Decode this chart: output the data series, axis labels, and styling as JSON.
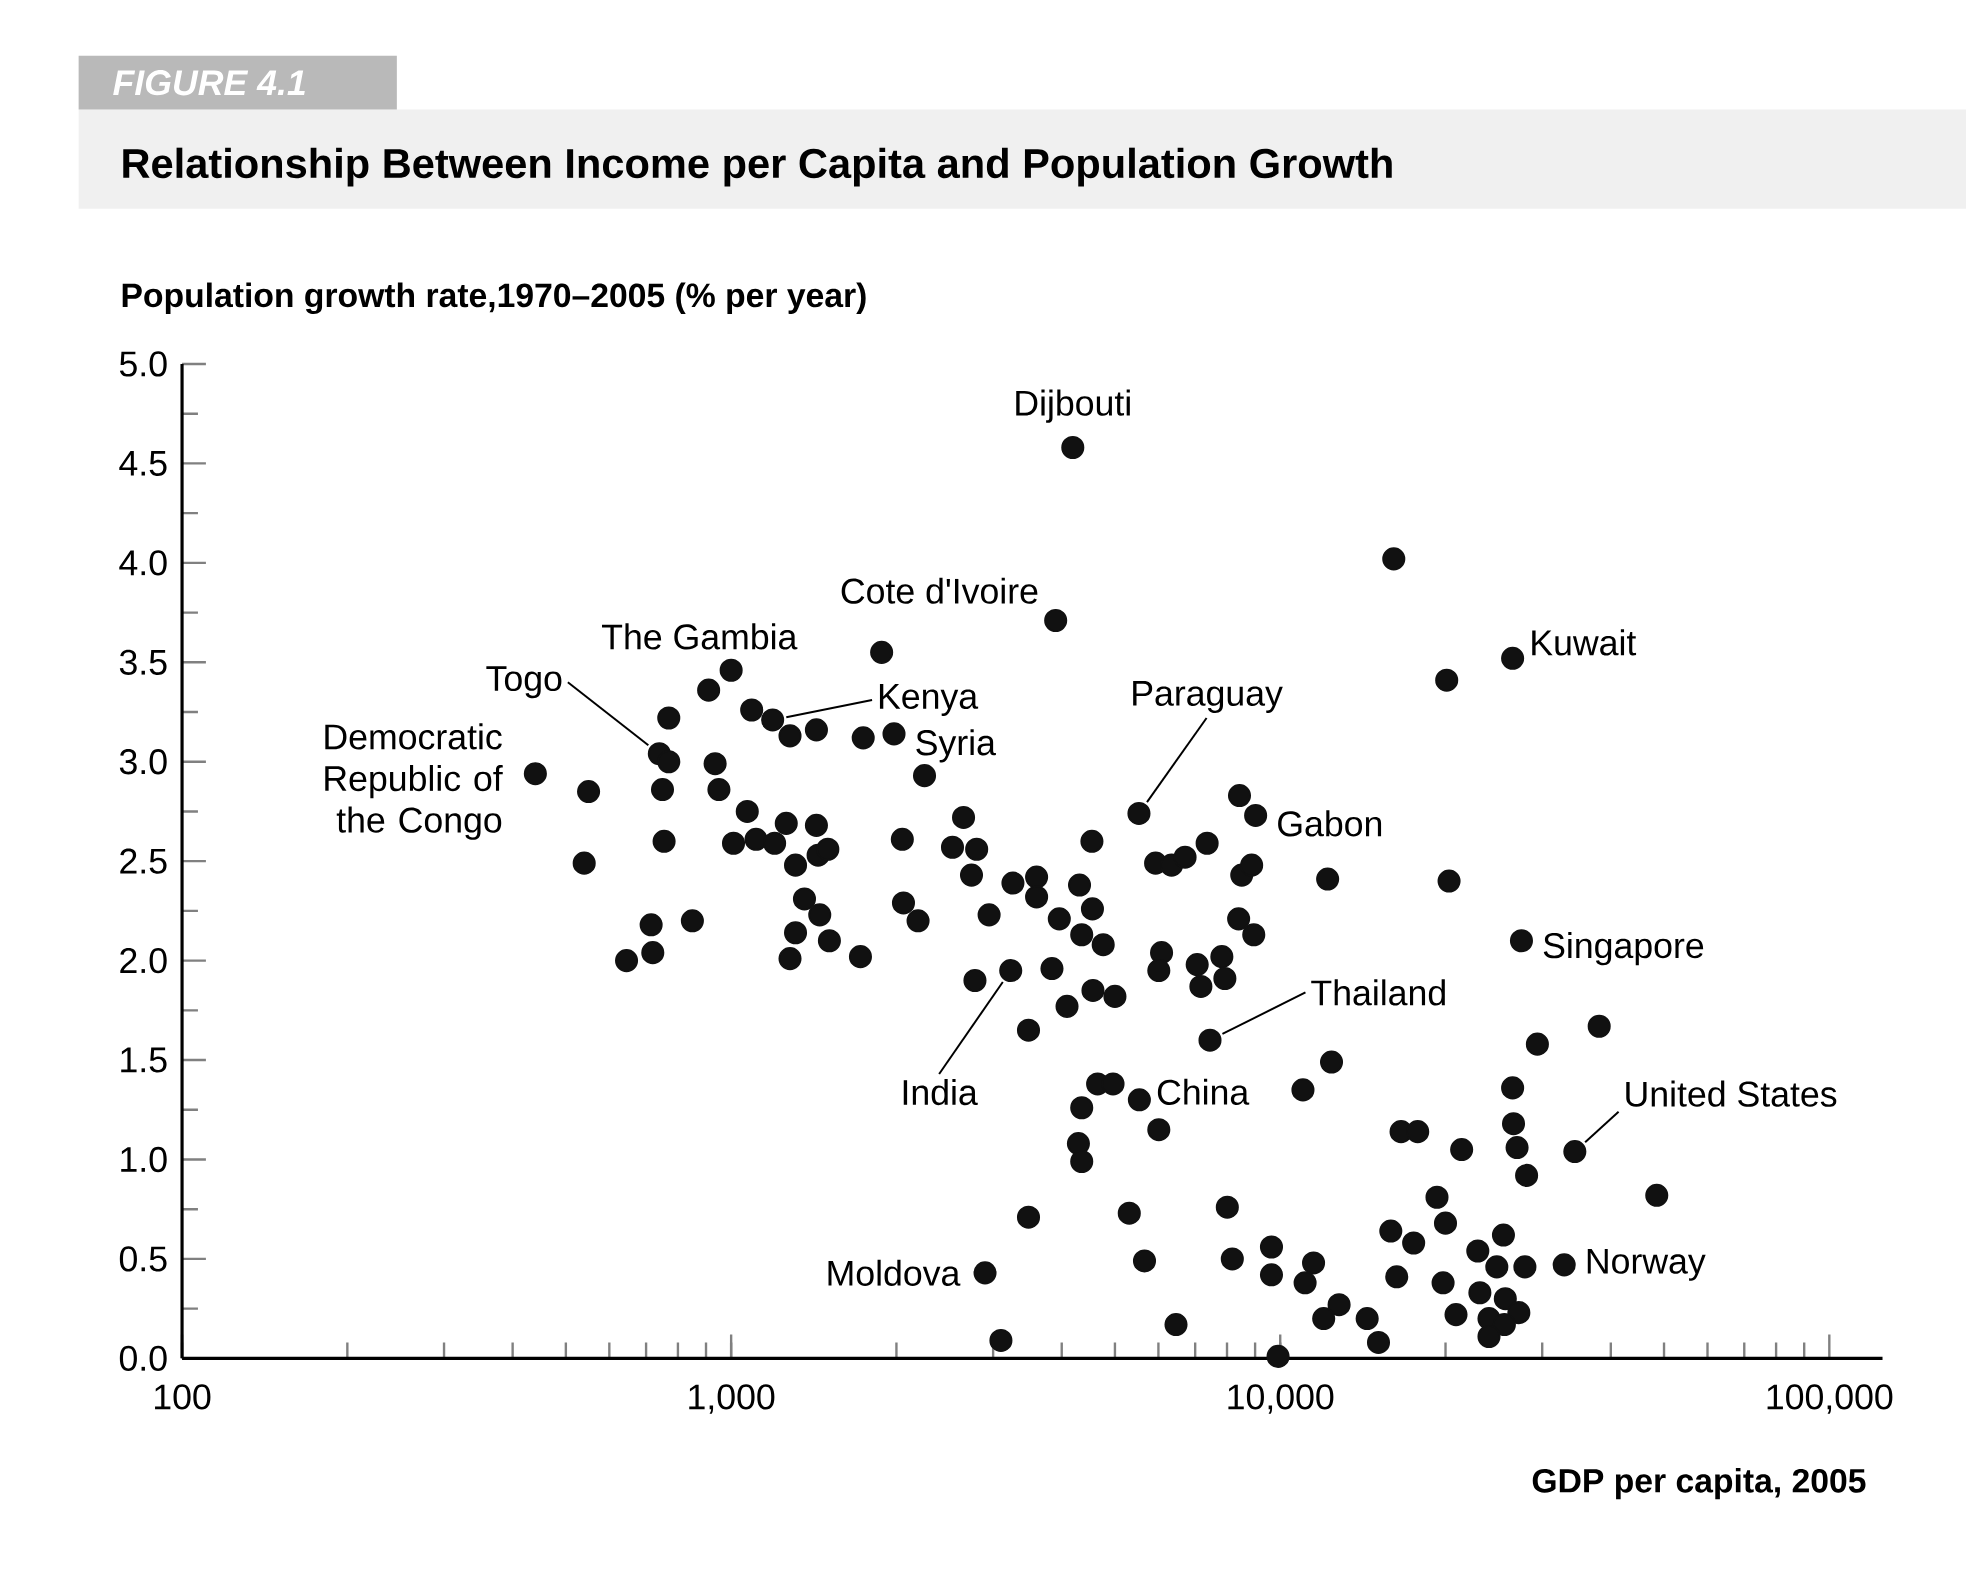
{
  "chart_data": {
    "type": "scatter",
    "title": "Relationship Between Income per Capita and Population Growth",
    "xlabel": "GDP per capita, 2005",
    "ylabel": "Population growth rate,1970–2005 (% per year)",
    "color": "#111111",
    "marker": "circle",
    "log": "x",
    "xlim": [
      100,
      125000
    ],
    "xticks": [
      100,
      {
        "value": 1000,
        "label": "1,000"
      },
      {
        "value": 10000,
        "label": "10,000"
      },
      {
        "value": 100000,
        "label": "100,000"
      }
    ],
    "ylim": [
      0,
      5
    ],
    "yticks": [
      {
        "value": 0,
        "label": "0.0"
      },
      0.5,
      {
        "value": 1,
        "label": "1.0"
      },
      1.5,
      {
        "value": 2,
        "label": "2.0"
      },
      2.5,
      {
        "value": 3,
        "label": "3.0"
      },
      3.5,
      {
        "value": 4,
        "label": "4.0"
      },
      4.5,
      {
        "value": 5,
        "label": "5.0"
      }
    ],
    "x": [
      440,
      550,
      540,
      770,
      740,
      770,
      750,
      755,
      715,
      720,
      645,
      850,
      910,
      1000,
      935,
      950,
      1070,
      1010,
      1110,
      1200,
      1090,
      1190,
      1280,
      1430,
      1260,
      1430,
      1310,
      1440,
      1500,
      1360,
      1450,
      1310,
      1510,
      1280,
      1720,
      1740,
      1980,
      1880,
      2250,
      2050,
      2060,
      2190,
      2650,
      2530,
      2800,
      2740,
      2950,
      3260,
      2780,
      3230,
      3480,
      3480,
      2900,
      3100,
      16100,
      3900,
      20100,
      26500,
      5530,
      8430,
      9020,
      4540,
      3600,
      3600,
      4310,
      3960,
      4550,
      4350,
      4760,
      3840,
      4560,
      5000,
      4090,
      5930,
      6340,
      6710,
      7360,
      8510,
      8870,
      8400,
      8950,
      6080,
      6010,
      7060,
      7830,
      7170,
      7930,
      12200,
      20300,
      27500,
      7450,
      12400,
      11000,
      38100,
      29400,
      26500,
      26600,
      27000,
      28100,
      34400,
      21400,
      16600,
      17800,
      48500,
      5540,
      4650,
      4960,
      4350,
      6010,
      4290,
      4350,
      5310,
      8010,
      5660,
      8180,
      9640,
      9640,
      11500,
      11100,
      6460,
      12800,
      12000,
      14400,
      15100,
      9910,
      19300,
      20000,
      15900,
      17500,
      16300,
      19800,
      22900,
      25500,
      24800,
      27900,
      32900,
      23100,
      25700,
      20900,
      24000,
      27200,
      25600,
      24000,
      4190
    ],
    "values": [
      2.94,
      2.85,
      2.49,
      3.22,
      3.04,
      3.0,
      2.86,
      2.6,
      2.18,
      2.04,
      2.0,
      2.2,
      3.36,
      3.46,
      2.99,
      2.86,
      2.75,
      2.59,
      2.61,
      2.59,
      3.26,
      3.21,
      3.13,
      3.16,
      2.69,
      2.68,
      2.48,
      2.53,
      2.56,
      2.31,
      2.23,
      2.14,
      2.1,
      2.01,
      2.02,
      3.12,
      3.14,
      3.55,
      2.93,
      2.61,
      2.29,
      2.2,
      2.72,
      2.57,
      2.56,
      2.43,
      2.23,
      2.39,
      1.9,
      1.95,
      1.65,
      0.71,
      0.43,
      0.09,
      4.02,
      3.71,
      3.41,
      3.52,
      2.74,
      2.83,
      2.73,
      2.6,
      2.42,
      2.32,
      2.38,
      2.21,
      2.26,
      2.13,
      2.08,
      1.96,
      1.85,
      1.82,
      1.77,
      2.49,
      2.48,
      2.52,
      2.59,
      2.43,
      2.48,
      2.21,
      2.13,
      2.04,
      1.95,
      1.98,
      2.02,
      1.87,
      1.91,
      2.41,
      2.4,
      2.1,
      1.6,
      1.49,
      1.35,
      1.67,
      1.58,
      1.36,
      1.18,
      1.06,
      0.92,
      1.04,
      1.05,
      1.14,
      1.14,
      0.82,
      1.3,
      1.38,
      1.38,
      1.26,
      1.15,
      1.08,
      0.99,
      0.73,
      0.76,
      0.49,
      0.5,
      0.56,
      0.42,
      0.48,
      0.38,
      0.17,
      0.27,
      0.2,
      0.2,
      0.08,
      0.01,
      0.81,
      0.68,
      0.64,
      0.58,
      0.41,
      0.38,
      0.54,
      0.62,
      0.46,
      0.46,
      0.47,
      0.33,
      0.3,
      0.22,
      0.2,
      0.23,
      0.17,
      0.11,
      4.58
    ],
    "annotations": [
      "FIGURE 4.1",
      {
        "text": "Dijbouti",
        "x": 4190,
        "y": 4.58
      },
      {
        "text": "Cote d'Ivoire",
        "x": 3900,
        "y": 3.71
      },
      {
        "text": "The Gambia",
        "x": 1000,
        "y": 3.46
      },
      {
        "text": "Togo",
        "x": 740,
        "y": 3.04
      },
      {
        "text": "Kenya",
        "x": 1190,
        "y": 3.21
      },
      {
        "text": "Syria",
        "x": 1980,
        "y": 3.14
      },
      {
        "text": "Democratic Republic of the Congo",
        "x": 440,
        "y": 2.94
      },
      {
        "text": "Paraguay",
        "x": 5530,
        "y": 2.74
      },
      {
        "text": "Gabon",
        "x": 9020,
        "y": 2.73
      },
      {
        "text": "Kuwait",
        "x": 26500,
        "y": 3.52
      },
      {
        "text": "Singapore",
        "x": 27500,
        "y": 2.1
      },
      {
        "text": "Thailand",
        "x": 7450,
        "y": 1.6
      },
      {
        "text": "India",
        "x": 3230,
        "y": 1.95
      },
      {
        "text": "China",
        "x": 5540,
        "y": 1.3
      },
      {
        "text": "United States",
        "x": 34400,
        "y": 1.04
      },
      {
        "text": "Moldova",
        "x": 2900,
        "y": 0.43
      },
      {
        "text": "Norway",
        "x": 32900,
        "y": 0.47
      }
    ]
  }
}
